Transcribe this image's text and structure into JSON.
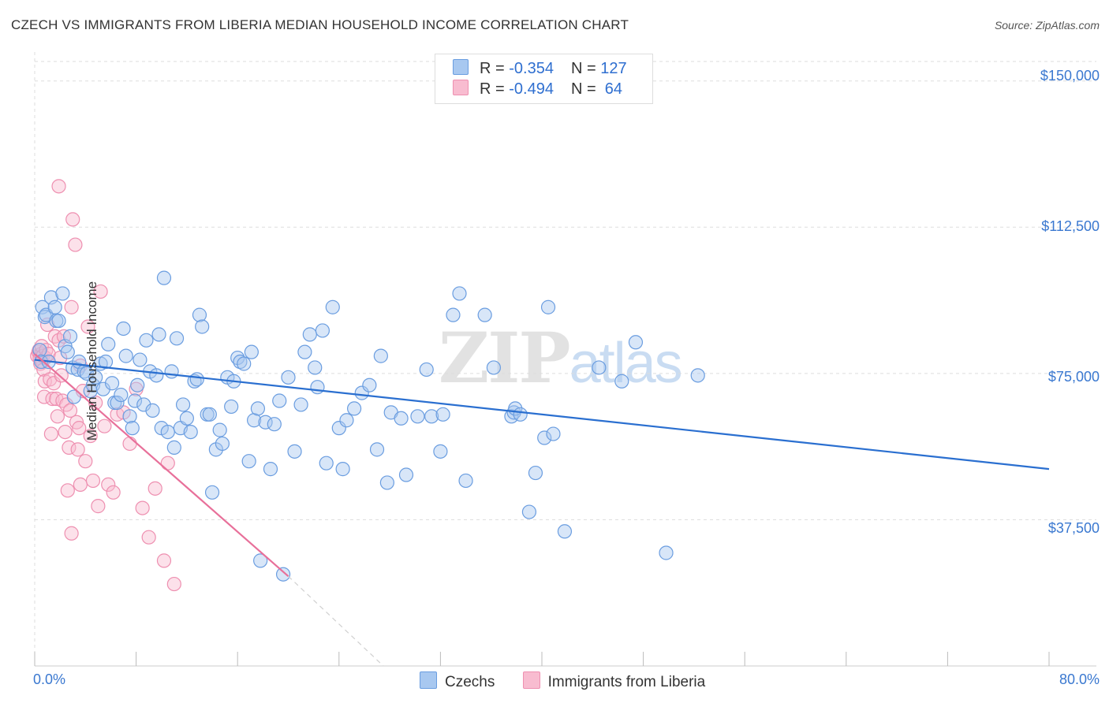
{
  "title": "CZECH VS IMMIGRANTS FROM LIBERIA MEDIAN HOUSEHOLD INCOME CORRELATION CHART",
  "source": "Source: ZipAtlas.com",
  "watermark": {
    "zip": "ZIP",
    "atlas": "atlas"
  },
  "legend": {
    "czechs": {
      "r_label": "R = ",
      "r_value": "-0.354",
      "n_label": "N = ",
      "n_value": "127"
    },
    "liberia": {
      "r_label": "R = ",
      "r_value": "-0.494",
      "n_label": "N = ",
      "n_value": " 64"
    }
  },
  "bottom_legend": {
    "czechs": "Czechs",
    "liberia": "Immigrants from Liberia"
  },
  "colors": {
    "czechs_fill": "#a8c8f0",
    "czechs_stroke": "#6a9de0",
    "czechs_line": "#2a6fd0",
    "liberia_fill": "#f8bcd0",
    "liberia_stroke": "#ee8fb0",
    "liberia_line": "#e8709a",
    "grid": "#dddddd",
    "tick_text": "#3a78d0"
  },
  "chart_data": {
    "type": "scatter",
    "title": "CZECH VS IMMIGRANTS FROM LIBERIA MEDIAN HOUSEHOLD INCOME CORRELATION CHART",
    "xlabel": "",
    "ylabel": "Median Household Income",
    "xlim": [
      0,
      80
    ],
    "ylim": [
      0,
      155000
    ],
    "x_tick_labels": [
      "0.0%",
      "80.0%"
    ],
    "y_ticks": [
      37500,
      75000,
      112500,
      150000
    ],
    "y_tick_labels": [
      "$37,500",
      "$75,000",
      "$112,500",
      "$150,000"
    ],
    "grid": true,
    "legend_position": "top-center",
    "series": [
      {
        "name": "Czechs",
        "r": -0.354,
        "n": 127,
        "trend": {
          "x": [
            0,
            80
          ],
          "y": [
            78500,
            50500
          ]
        },
        "points": [
          [
            0.4,
            81000
          ],
          [
            0.5,
            78000
          ],
          [
            0.6,
            92000
          ],
          [
            0.8,
            89500
          ],
          [
            0.9,
            90000
          ],
          [
            1.1,
            78000
          ],
          [
            1.3,
            94500
          ],
          [
            1.6,
            92000
          ],
          [
            1.7,
            88500
          ],
          [
            1.9,
            88500
          ],
          [
            2.2,
            95500
          ],
          [
            2.4,
            82000
          ],
          [
            2.6,
            80500
          ],
          [
            2.8,
            84500
          ],
          [
            3.0,
            76500
          ],
          [
            3.1,
            69000
          ],
          [
            3.4,
            76000
          ],
          [
            3.5,
            78000
          ],
          [
            3.9,
            75500
          ],
          [
            4.1,
            75000
          ],
          [
            4.4,
            70500
          ],
          [
            4.6,
            72000
          ],
          [
            4.8,
            74000
          ],
          [
            5.2,
            77500
          ],
          [
            5.4,
            71000
          ],
          [
            5.6,
            78000
          ],
          [
            5.8,
            82500
          ],
          [
            6.1,
            72500
          ],
          [
            6.3,
            67500
          ],
          [
            6.5,
            67500
          ],
          [
            6.8,
            69500
          ],
          [
            7.0,
            86500
          ],
          [
            7.2,
            79500
          ],
          [
            7.5,
            64000
          ],
          [
            7.7,
            61000
          ],
          [
            7.9,
            68000
          ],
          [
            8.1,
            72000
          ],
          [
            8.3,
            78500
          ],
          [
            8.6,
            67000
          ],
          [
            8.8,
            83500
          ],
          [
            9.1,
            75500
          ],
          [
            9.3,
            65500
          ],
          [
            9.6,
            74500
          ],
          [
            9.8,
            85000
          ],
          [
            10.0,
            61000
          ],
          [
            10.2,
            99500
          ],
          [
            10.5,
            60000
          ],
          [
            10.8,
            75500
          ],
          [
            11.0,
            56000
          ],
          [
            11.2,
            84000
          ],
          [
            11.5,
            61000
          ],
          [
            11.7,
            67000
          ],
          [
            12.0,
            63500
          ],
          [
            12.3,
            60000
          ],
          [
            12.6,
            73000
          ],
          [
            12.8,
            73500
          ],
          [
            13.0,
            90000
          ],
          [
            13.2,
            87000
          ],
          [
            13.6,
            64500
          ],
          [
            13.8,
            64500
          ],
          [
            14.0,
            44500
          ],
          [
            14.3,
            55500
          ],
          [
            14.6,
            60500
          ],
          [
            14.8,
            57000
          ],
          [
            15.2,
            74000
          ],
          [
            15.5,
            66500
          ],
          [
            15.7,
            73000
          ],
          [
            16.0,
            79000
          ],
          [
            16.2,
            78000
          ],
          [
            16.5,
            77500
          ],
          [
            16.9,
            52500
          ],
          [
            17.1,
            80500
          ],
          [
            17.3,
            63000
          ],
          [
            17.6,
            66000
          ],
          [
            17.8,
            27000
          ],
          [
            18.2,
            62500
          ],
          [
            18.6,
            50500
          ],
          [
            18.9,
            62000
          ],
          [
            19.3,
            68000
          ],
          [
            19.6,
            23500
          ],
          [
            20.0,
            74000
          ],
          [
            20.5,
            55000
          ],
          [
            21.0,
            67000
          ],
          [
            21.3,
            80500
          ],
          [
            21.7,
            85000
          ],
          [
            22.1,
            76500
          ],
          [
            22.3,
            71500
          ],
          [
            22.7,
            86000
          ],
          [
            23.0,
            52000
          ],
          [
            23.5,
            92000
          ],
          [
            24.0,
            61000
          ],
          [
            24.3,
            50500
          ],
          [
            24.6,
            63000
          ],
          [
            25.2,
            66000
          ],
          [
            25.8,
            70000
          ],
          [
            26.4,
            72000
          ],
          [
            27.0,
            55500
          ],
          [
            27.3,
            79500
          ],
          [
            27.8,
            47000
          ],
          [
            28.1,
            65000
          ],
          [
            28.9,
            63500
          ],
          [
            29.3,
            49000
          ],
          [
            30.2,
            64000
          ],
          [
            30.9,
            76000
          ],
          [
            31.3,
            64000
          ],
          [
            32.0,
            55000
          ],
          [
            32.2,
            64500
          ],
          [
            33.0,
            90000
          ],
          [
            33.5,
            95500
          ],
          [
            34.0,
            47500
          ],
          [
            35.5,
            90000
          ],
          [
            36.2,
            76500
          ],
          [
            37.6,
            64000
          ],
          [
            37.8,
            65000
          ],
          [
            37.9,
            66000
          ],
          [
            38.3,
            64500
          ],
          [
            39.0,
            39500
          ],
          [
            39.5,
            49500
          ],
          [
            40.2,
            58500
          ],
          [
            40.5,
            92000
          ],
          [
            40.9,
            59500
          ],
          [
            41.8,
            34500
          ],
          [
            44.5,
            76500
          ],
          [
            46.3,
            73000
          ],
          [
            47.4,
            83000
          ],
          [
            49.8,
            29000
          ],
          [
            52.3,
            74500
          ]
        ]
      },
      {
        "name": "Immigrants from Liberia",
        "r": -0.494,
        "n": 64,
        "trend": {
          "x": [
            0,
            20
          ],
          "y": [
            80000,
            23000
          ]
        },
        "trend_dashed_extension": {
          "x": [
            20,
            27.5
          ],
          "y": [
            23000,
            0
          ]
        },
        "points": [
          [
            0.2,
            79500
          ],
          [
            0.3,
            80500
          ],
          [
            0.35,
            81000
          ],
          [
            0.4,
            79000
          ],
          [
            0.45,
            77500
          ],
          [
            0.5,
            80000
          ],
          [
            0.55,
            82000
          ],
          [
            0.6,
            78000
          ],
          [
            0.65,
            79500
          ],
          [
            0.7,
            76000
          ],
          [
            0.75,
            69000
          ],
          [
            0.8,
            73000
          ],
          [
            0.85,
            79000
          ],
          [
            0.9,
            81000
          ],
          [
            1.0,
            87500
          ],
          [
            1.1,
            80000
          ],
          [
            1.2,
            73500
          ],
          [
            1.3,
            59500
          ],
          [
            1.4,
            68500
          ],
          [
            1.5,
            72500
          ],
          [
            1.6,
            84500
          ],
          [
            1.7,
            68500
          ],
          [
            1.8,
            64000
          ],
          [
            1.9,
            83500
          ],
          [
            2.0,
            79000
          ],
          [
            2.1,
            74500
          ],
          [
            2.2,
            68000
          ],
          [
            2.3,
            84500
          ],
          [
            2.4,
            60000
          ],
          [
            2.5,
            67000
          ],
          [
            2.6,
            45000
          ],
          [
            2.7,
            56000
          ],
          [
            2.8,
            65500
          ],
          [
            2.9,
            92000
          ],
          [
            3.0,
            114500
          ],
          [
            3.2,
            108000
          ],
          [
            3.3,
            62500
          ],
          [
            3.4,
            55500
          ],
          [
            3.5,
            61000
          ],
          [
            3.6,
            77000
          ],
          [
            3.8,
            70500
          ],
          [
            4.0,
            52500
          ],
          [
            4.2,
            87000
          ],
          [
            4.4,
            59000
          ],
          [
            4.6,
            47500
          ],
          [
            4.8,
            67500
          ],
          [
            5.0,
            41000
          ],
          [
            5.2,
            96000
          ],
          [
            5.5,
            61500
          ],
          [
            5.8,
            46500
          ],
          [
            6.2,
            44500
          ],
          [
            6.5,
            64500
          ],
          [
            7.0,
            65000
          ],
          [
            7.5,
            57000
          ],
          [
            8.0,
            71000
          ],
          [
            8.5,
            40500
          ],
          [
            9.0,
            33000
          ],
          [
            9.5,
            45500
          ],
          [
            10.2,
            27000
          ],
          [
            10.5,
            52000
          ],
          [
            11.0,
            21000
          ],
          [
            1.9,
            123000
          ],
          [
            2.9,
            34000
          ],
          [
            3.6,
            46500
          ]
        ]
      }
    ]
  }
}
